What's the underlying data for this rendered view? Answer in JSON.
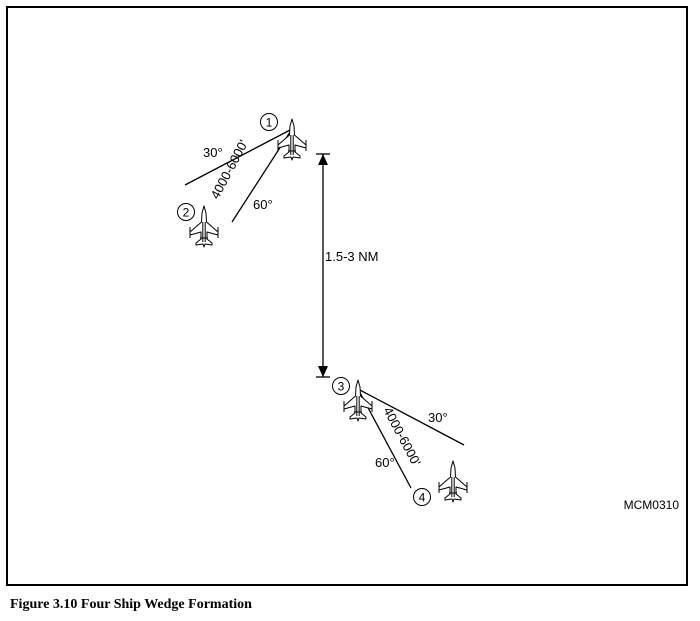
{
  "figure": {
    "caption": "Figure 3.10  Four Ship Wedge Formation",
    "figure_id": "MCM0310"
  },
  "aircraft": [
    {
      "number": "1"
    },
    {
      "number": "2"
    },
    {
      "number": "3"
    },
    {
      "number": "4"
    }
  ],
  "labels": {
    "upper_angle_30": "30°",
    "upper_angle_60": "60°",
    "upper_distance": "4000-6000'",
    "separation": "1.5-3 NM",
    "lower_angle_30": "30°",
    "lower_angle_60": "60°",
    "lower_distance": "4000-6000'"
  }
}
